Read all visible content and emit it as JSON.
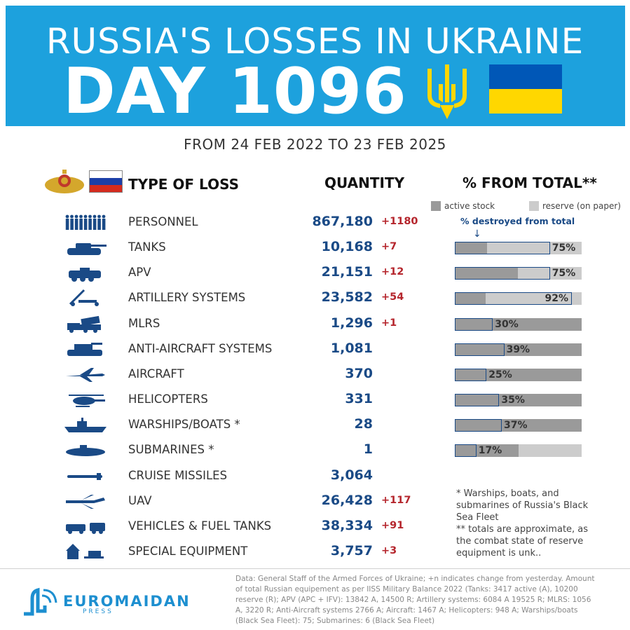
{
  "header": {
    "title_line1": "RUSSIA'S LOSSES IN UKRAINE",
    "title_line2": "DAY 1096",
    "date_range": "FROM 24 FEB 2022 TO 23 FEB 2025"
  },
  "table_header": {
    "type": "TYPE OF LOSS",
    "quantity": "QUANTITY",
    "percent": "% FROM TOTAL**"
  },
  "legend": {
    "active": "active stock",
    "reserve": "reserve (on paper)",
    "destroyed_label": "% destroyed from total",
    "arrow": "↓"
  },
  "colors": {
    "banner": "#1da1dd",
    "qty": "#1a4a86",
    "change": "#b5262d",
    "active": "#9a9a9a",
    "reserve": "#cccccc"
  },
  "rows": [
    {
      "label": "PERSONNEL",
      "qty": "867,180",
      "change": "+1180",
      "icon": "soldiers-icon"
    },
    {
      "label": "TANKS",
      "qty": "10,168",
      "change": "+7",
      "icon": "tank-icon"
    },
    {
      "label": "APV",
      "qty": "21,151",
      "change": "+12",
      "icon": "apv-icon"
    },
    {
      "label": "ARTILLERY SYSTEMS",
      "qty": "23,582",
      "change": "+54",
      "icon": "artillery-icon"
    },
    {
      "label": "MLRS",
      "qty": "1,296",
      "change": "+1",
      "icon": "mlrs-icon"
    },
    {
      "label": "ANTI-AIRCRAFT SYSTEMS",
      "qty": "1,081",
      "change": "",
      "icon": "anti-aircraft-icon"
    },
    {
      "label": "AIRCRAFT",
      "qty": "370",
      "change": "",
      "icon": "aircraft-icon"
    },
    {
      "label": "HELICOPTERS",
      "qty": "331",
      "change": "",
      "icon": "helicopter-icon"
    },
    {
      "label": "WARSHIPS/BOATS *",
      "qty": "28",
      "change": "",
      "icon": "warship-icon"
    },
    {
      "label": "SUBMARINES *",
      "qty": "1",
      "change": "",
      "icon": "submarine-icon"
    },
    {
      "label": "CRUISE MISSILES",
      "qty": "3,064",
      "change": "",
      "icon": "missile-icon"
    },
    {
      "label": "UAV",
      "qty": "26,428",
      "change": "+117",
      "icon": "uav-icon"
    },
    {
      "label": "VEHICLES & FUEL TANKS",
      "qty": "38,334",
      "change": "+91",
      "icon": "vehicles-icon"
    },
    {
      "label": "SPECIAL EQUIPMENT",
      "qty": "3,757",
      "change": "+3",
      "icon": "special-equipment-icon"
    }
  ],
  "chart_data": {
    "type": "bar",
    "title": "% FROM TOTAL**",
    "categories": [
      "TANKS",
      "APV",
      "ARTILLERY SYSTEMS",
      "MLRS",
      "ANTI-AIRCRAFT SYSTEMS",
      "AIRCRAFT",
      "HELICOPTERS",
      "WARSHIPS/BOATS *",
      "SUBMARINES *"
    ],
    "series": [
      {
        "name": "% destroyed from total",
        "values": [
          75,
          75,
          92,
          30,
          39,
          25,
          35,
          37,
          17
        ]
      },
      {
        "name": "active stock",
        "values": [
          25,
          49,
          24,
          100,
          100,
          100,
          100,
          100,
          50
        ]
      }
    ],
    "labels": [
      "75%",
      "75%",
      "92%",
      "30%",
      "39%",
      "25%",
      "35%",
      "37%",
      "17%"
    ],
    "ylim": [
      0,
      100
    ]
  },
  "notes": {
    "line1": "* Warships, boats, and submarines of Russia's Black Sea Fleet",
    "line2": "** totals are approximate, as the combat state of reserve equipment is unk.."
  },
  "source": "Data: General Staff of the Armed Forces of Ukraine; +n indicates change from yesterday. Amount of total Russian equipement as per IISS Military Balance 2022 (Tanks: 3417 active (A), 10200 reserve (R); APV (APC + IFV): 13842 A, 14500 R; Artillery systems: 6084 A 19525 R; MLRS: 1056 A, 3220 R; Anti-Aircraft systems 2766 A; Aircraft: 1467 A; Helicopters: 948 A; Warships/boats (Black Sea Fleet): 75; Submarines: 6 (Black Sea Fleet)",
  "logo": {
    "name": "EUROMAIDAN",
    "sub": "PRESS"
  }
}
